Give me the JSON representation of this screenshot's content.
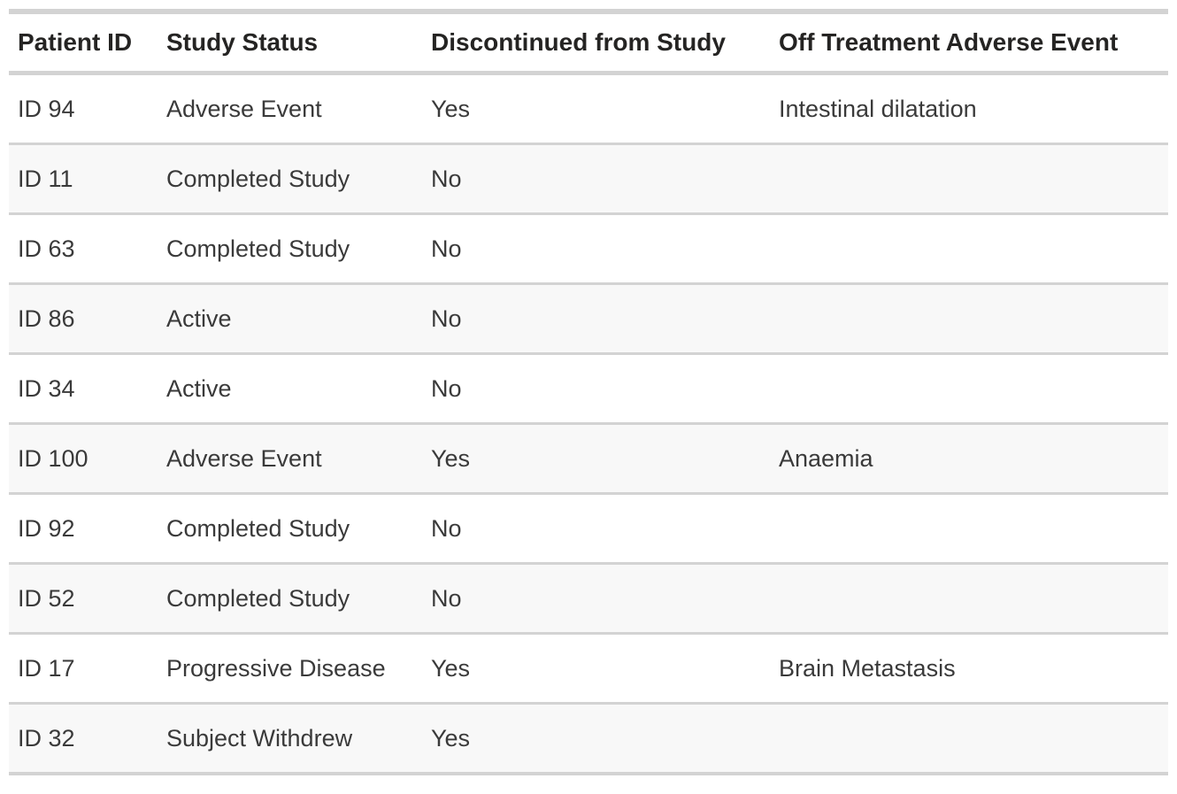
{
  "table": {
    "columns": [
      {
        "key": "patient_id",
        "label": "Patient ID"
      },
      {
        "key": "study_status",
        "label": "Study Status"
      },
      {
        "key": "discontinued",
        "label": "Discontinued from Study"
      },
      {
        "key": "adverse_event",
        "label": "Off Treatment Adverse Event"
      }
    ],
    "rows": [
      {
        "patient_id": "ID 94",
        "study_status": "Adverse Event",
        "discontinued": "Yes",
        "adverse_event": "Intestinal dilatation"
      },
      {
        "patient_id": "ID 11",
        "study_status": "Completed Study",
        "discontinued": "No",
        "adverse_event": ""
      },
      {
        "patient_id": "ID 63",
        "study_status": "Completed Study",
        "discontinued": "No",
        "adverse_event": ""
      },
      {
        "patient_id": "ID 86",
        "study_status": "Active",
        "discontinued": "No",
        "adverse_event": ""
      },
      {
        "patient_id": "ID 34",
        "study_status": "Active",
        "discontinued": "No",
        "adverse_event": ""
      },
      {
        "patient_id": "ID 100",
        "study_status": "Adverse Event",
        "discontinued": "Yes",
        "adverse_event": "Anaemia"
      },
      {
        "patient_id": "ID 92",
        "study_status": "Completed Study",
        "discontinued": "No",
        "adverse_event": ""
      },
      {
        "patient_id": "ID 52",
        "study_status": "Completed Study",
        "discontinued": "No",
        "adverse_event": ""
      },
      {
        "patient_id": "ID 17",
        "study_status": "Progressive Disease",
        "discontinued": "Yes",
        "adverse_event": "Brain Metastasis"
      },
      {
        "patient_id": "ID 32",
        "study_status": "Subject Withdrew",
        "discontinued": "Yes",
        "adverse_event": ""
      }
    ],
    "colors": {
      "header_text": "#252423",
      "body_text": "#3a3a3a",
      "alt_row_background": "#f8f8f8",
      "row_background": "#ffffff",
      "grid_border": "#d3d3d3"
    }
  }
}
